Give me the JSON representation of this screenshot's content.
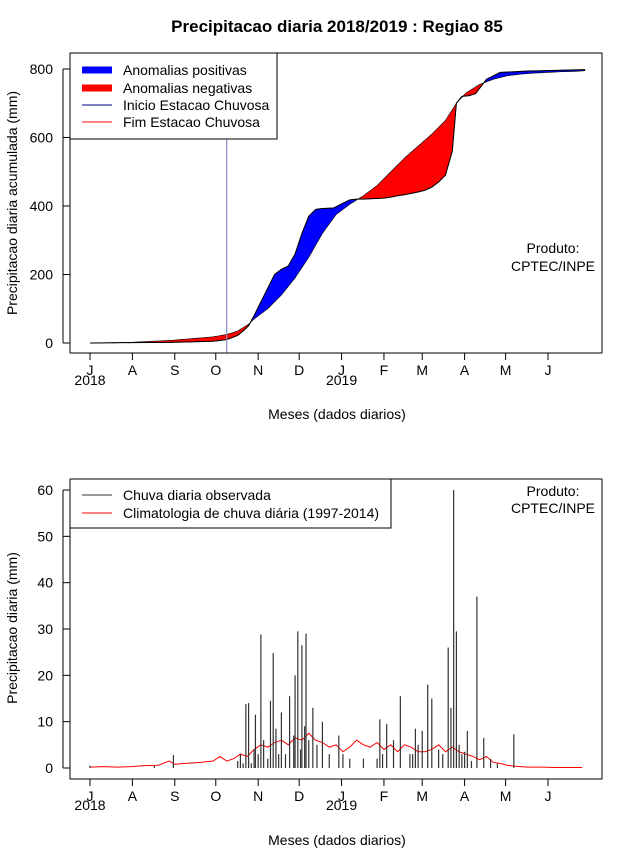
{
  "chart_data": [
    {
      "type": "area",
      "title": "Precipitacao diaria 2018/2019 : Regiao 85",
      "xlabel": "Meses (dados diarios)",
      "ylabel": "Precipitacao diaria acumulada (mm)",
      "x_unit": "days since 1 Jul 2018",
      "xlim": [
        0,
        365
      ],
      "ylim": [
        0,
        800
      ],
      "yticks": [
        0,
        200,
        400,
        600,
        800
      ],
      "month_ticks": [
        {
          "day": 0,
          "label": "J"
        },
        {
          "day": 31,
          "label": "A"
        },
        {
          "day": 62,
          "label": "S"
        },
        {
          "day": 92,
          "label": "O"
        },
        {
          "day": 123,
          "label": "N"
        },
        {
          "day": 153,
          "label": "D"
        },
        {
          "day": 184,
          "label": "J"
        },
        {
          "day": 215,
          "label": "F"
        },
        {
          "day": 243,
          "label": "M"
        },
        {
          "day": 274,
          "label": "A"
        },
        {
          "day": 304,
          "label": "M"
        },
        {
          "day": 335,
          "label": "J"
        }
      ],
      "year_labels": [
        {
          "day": 0,
          "label": "2018"
        },
        {
          "day": 184,
          "label": "2019"
        }
      ],
      "series": [
        {
          "name": "observed_cumulative",
          "x": [
            0,
            30,
            60,
            90,
            100,
            108,
            112,
            116,
            120,
            125,
            130,
            135,
            140,
            145,
            150,
            155,
            160,
            165,
            168,
            172,
            178,
            185,
            190,
            195,
            200,
            205,
            210,
            215,
            220,
            225,
            230,
            235,
            240,
            245,
            250,
            255,
            260,
            265,
            268,
            272,
            277,
            282,
            290,
            300,
            310,
            320,
            330,
            340,
            350,
            362
          ],
          "values": [
            0,
            1,
            2,
            5,
            10,
            22,
            35,
            50,
            80,
            120,
            160,
            200,
            215,
            225,
            260,
            320,
            370,
            390,
            392,
            393,
            394,
            408,
            418,
            420,
            420,
            421,
            422,
            423,
            426,
            430,
            433,
            437,
            441,
            446,
            455,
            470,
            490,
            560,
            700,
            720,
            722,
            728,
            770,
            790,
            792,
            794,
            795,
            796,
            797,
            798
          ]
        },
        {
          "name": "climatology_cumulative",
          "x": [
            0,
            30,
            60,
            90,
            100,
            108,
            112,
            116,
            120,
            130,
            140,
            150,
            160,
            170,
            180,
            190,
            200,
            210,
            220,
            230,
            240,
            250,
            260,
            268,
            275,
            285,
            295,
            305,
            315,
            325,
            335,
            345,
            355,
            362
          ],
          "values": [
            0,
            2,
            8,
            18,
            25,
            35,
            45,
            55,
            70,
            100,
            140,
            190,
            250,
            320,
            375,
            405,
            430,
            460,
            500,
            540,
            575,
            610,
            650,
            700,
            730,
            755,
            770,
            780,
            785,
            788,
            790,
            792,
            793,
            795
          ]
        }
      ],
      "rainy_season_start_day": 100,
      "legend": {
        "position": "top-left",
        "entries": [
          {
            "label": "Anomalias positivas",
            "color": "#0000ff",
            "style": "thick"
          },
          {
            "label": "Anomalias negativas",
            "color": "#ff0000",
            "style": "thick"
          },
          {
            "label": "Inicio Estacao Chuvosa",
            "color": "#00008b",
            "style": "line"
          },
          {
            "label": "Fim Estacao Chuvosa",
            "color": "#ff0000",
            "style": "line"
          }
        ]
      },
      "annotation": [
        "Produto:",
        "CPTEC/INPE"
      ],
      "colors": {
        "positive": "#0000ff",
        "negative": "#ff0000",
        "start_line": "#8a8ac4"
      }
    },
    {
      "type": "bar",
      "xlabel": "Meses (dados diarios)",
      "ylabel": "Precipitacao diaria (mm)",
      "x_unit": "days since 1 Jul 2018",
      "xlim": [
        0,
        365
      ],
      "ylim": [
        0,
        60
      ],
      "yticks": [
        0,
        10,
        20,
        30,
        40,
        50,
        60
      ],
      "month_ticks": [
        {
          "day": 0,
          "label": "J"
        },
        {
          "day": 31,
          "label": "A"
        },
        {
          "day": 62,
          "label": "S"
        },
        {
          "day": 92,
          "label": "O"
        },
        {
          "day": 123,
          "label": "N"
        },
        {
          "day": 153,
          "label": "D"
        },
        {
          "day": 184,
          "label": "J"
        },
        {
          "day": 215,
          "label": "F"
        },
        {
          "day": 243,
          "label": "M"
        },
        {
          "day": 274,
          "label": "A"
        },
        {
          "day": 304,
          "label": "M"
        },
        {
          "day": 335,
          "label": "J"
        }
      ],
      "year_labels": [
        {
          "day": 0,
          "label": "2018"
        },
        {
          "day": 184,
          "label": "2019"
        }
      ],
      "observed_daily": {
        "name": "Chuva diaria observada",
        "days": [
          0,
          47,
          61,
          108,
          110,
          112,
          114,
          116,
          118,
          120,
          121,
          123,
          125,
          127,
          130,
          132,
          134,
          136,
          138,
          140,
          143,
          146,
          149,
          150,
          152,
          154,
          155,
          157,
          158,
          160,
          163,
          166,
          170,
          175,
          182,
          185,
          190,
          200,
          210,
          212,
          214,
          217,
          222,
          227,
          234,
          236,
          238,
          240,
          243,
          247,
          250,
          255,
          258,
          262,
          264,
          266,
          268,
          270,
          272,
          274,
          276,
          279,
          283,
          288,
          293,
          298,
          310
        ],
        "values": [
          0.5,
          0.5,
          2.8,
          1.5,
          3,
          1,
          13.8,
          14,
          1,
          4,
          11.5,
          3,
          28.8,
          6,
          2,
          14.5,
          24.8,
          8.5,
          3,
          12,
          3,
          15.5,
          7,
          20,
          29.5,
          4,
          26.5,
          9,
          29,
          6,
          13,
          5,
          10,
          3,
          7,
          3,
          2,
          2,
          2,
          10.5,
          3,
          9.5,
          6,
          15.5,
          3,
          3,
          8.5,
          5,
          8,
          18,
          15,
          4,
          3,
          26,
          13,
          60,
          29.5,
          5,
          3,
          3.5,
          8,
          1.5,
          37,
          6.5,
          2,
          1,
          7.3
        ]
      },
      "climatology_daily": {
        "name": "Climatologia de chuva diária (1997-2014)",
        "days": [
          0,
          10,
          20,
          30,
          40,
          50,
          58,
          62,
          70,
          80,
          90,
          95,
          100,
          105,
          110,
          115,
          120,
          125,
          130,
          135,
          140,
          145,
          150,
          155,
          160,
          165,
          170,
          175,
          180,
          185,
          190,
          195,
          200,
          205,
          210,
          215,
          220,
          225,
          230,
          235,
          240,
          245,
          250,
          255,
          260,
          265,
          270,
          275,
          280,
          285,
          290,
          295,
          300,
          305,
          310,
          315,
          320,
          330,
          340,
          350,
          360
        ],
        "values": [
          0.2,
          0.3,
          0.2,
          0.3,
          0.5,
          0.6,
          1.5,
          0.8,
          1,
          1.2,
          1.5,
          2.5,
          1.5,
          2,
          3,
          2.5,
          4,
          5,
          4.5,
          5.5,
          6,
          5,
          6.5,
          6,
          7.5,
          6,
          5.5,
          4.5,
          5,
          3.5,
          4.5,
          6,
          5,
          4.5,
          5.5,
          4,
          5,
          3.5,
          5,
          4.5,
          3.5,
          3.5,
          4,
          5,
          3.5,
          4.5,
          3.5,
          3,
          2.5,
          1.8,
          2.5,
          1.2,
          1,
          0.6,
          0.4,
          0.3,
          0.2,
          0.2,
          0.1,
          0.1,
          0.1
        ]
      },
      "legend": {
        "position": "top-left",
        "entries": [
          {
            "label": "Chuva diaria observada",
            "color": "#333333"
          },
          {
            "label": "Climatologia de chuva diária (1997-2014)",
            "color": "#ff0000"
          }
        ]
      },
      "annotation": [
        "Produto:",
        "CPTEC/INPE"
      ]
    }
  ]
}
